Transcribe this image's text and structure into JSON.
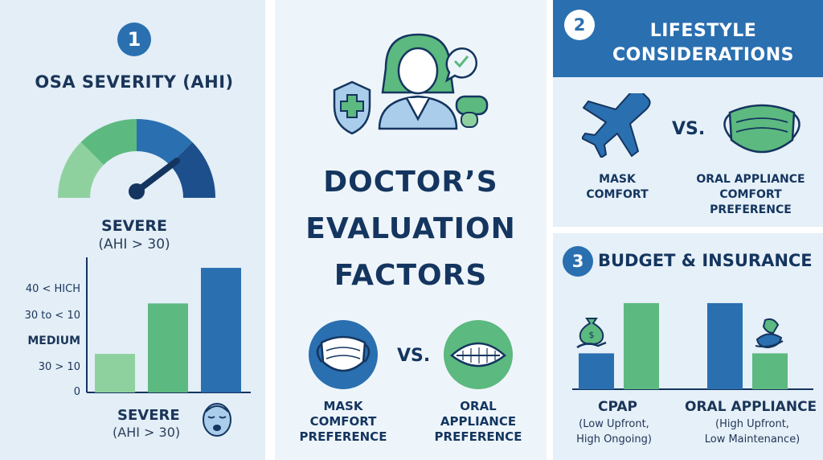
{
  "left_panel": {
    "step_number": "1",
    "title": "OSA SEVERITY (AHI)",
    "gauge_level": "severe",
    "gauge_label": "SEVERE",
    "gauge_sublabel": "(AHI > 30)",
    "bottom_label": "SEVERE",
    "bottom_sublabel": "(AHI > 30)"
  },
  "center_panel": {
    "title_lines": [
      "DOCTOR’S",
      "EVALUATION",
      "FACTORS"
    ],
    "vs_label": "VS.",
    "left_caption": [
      "MASK",
      "COMFORT",
      "PREFERENCE"
    ],
    "right_caption": [
      "ORAL",
      "APPLIANCE",
      "PREFERENCE"
    ]
  },
  "top_right_panel": {
    "step_number": "2",
    "title_lines": [
      "LIFESTYLE",
      "CONSIDERATIONS"
    ],
    "vs_label": "VS.",
    "left_caption": [
      "MASK",
      "COMFORT"
    ],
    "right_caption": [
      "ORAL APPLIANCE",
      "COMFORT",
      "PREFERENCE"
    ]
  },
  "bottom_right_panel": {
    "step_number": "3",
    "title": "BUDGET & INSURANCE",
    "cpap_label": "CPAP",
    "cpap_sub": [
      "(Low Upfront,",
      "High Ongoing)"
    ],
    "oral_label": "ORAL APPLIANCE",
    "oral_sub": [
      "(High Upfront,",
      "Low Maintenance)"
    ]
  },
  "colors": {
    "dark_blue": "#14355f",
    "mid_blue": "#2a6fb0",
    "green": "#5cb97f",
    "light_green": "#8fd19e",
    "panel_bg": "#e3eef7"
  },
  "chart_data": [
    {
      "type": "bar",
      "categories": [
        "",
        "",
        ""
      ],
      "values": [
        13,
        30,
        42
      ],
      "colors": [
        "#8fd19e",
        "#5cb97f",
        "#2a6fb0"
      ],
      "ytick_labels": [
        "0",
        "30 > 10",
        "MEDIUM",
        "30 to < 10",
        "40 < HICH"
      ],
      "ylim": [
        0,
        45
      ]
    },
    {
      "type": "bar",
      "categories": [
        "CPAP",
        "ORAL APPLIANCE"
      ],
      "series": [
        {
          "values": [
            1,
            2.4
          ],
          "color": "#2a6fb0"
        },
        {
          "values": [
            2.4,
            1
          ],
          "color": "#5cb97f"
        }
      ],
      "ylim": [
        0,
        2.6
      ]
    }
  ]
}
